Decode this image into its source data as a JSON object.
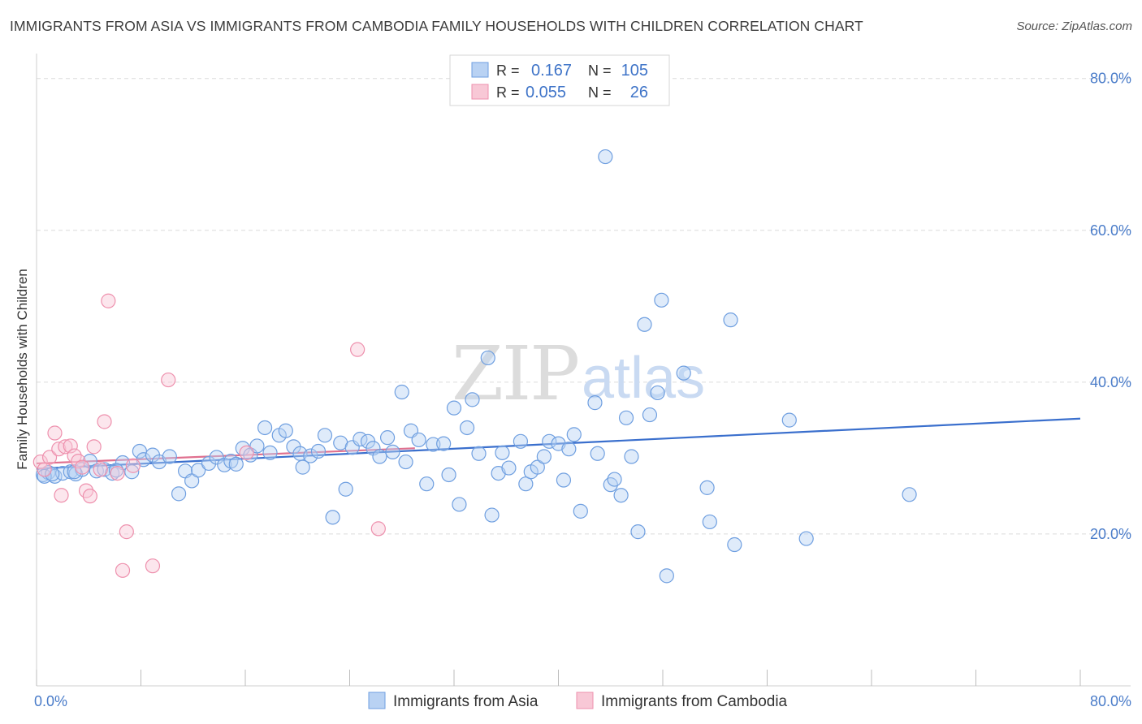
{
  "title": "IMMIGRANTS FROM ASIA VS IMMIGRANTS FROM CAMBODIA FAMILY HOUSEHOLDS WITH CHILDREN CORRELATION CHART",
  "source": "Source: ZipAtlas.com",
  "watermark": {
    "part1": "ZIP",
    "part2": "atlas"
  },
  "colors": {
    "asia": "#6f9fe0",
    "asia_fill": "#b9d2f3",
    "asia_line": "#3a6fcd",
    "cambodia": "#ee90ad",
    "cambodia_fill": "#f8c8d6",
    "cambodia_line": "#e0708f",
    "grid": "#dcdcdc",
    "axis_label": "#4a7cc9"
  },
  "legend_top": {
    "rows": [
      {
        "r_label": "R =",
        "r_value": "0.167",
        "n_label": "N =",
        "n_value": "105",
        "series": "asia"
      },
      {
        "r_label": "R =",
        "r_value": "0.055",
        "n_label": "N =",
        "n_value": "26",
        "series": "cambodia"
      }
    ]
  },
  "chart_data": {
    "type": "scatter",
    "title": "IMMIGRANTS FROM ASIA VS IMMIGRANTS FROM CAMBODIA FAMILY HOUSEHOLDS WITH CHILDREN CORRELATION CHART",
    "xlabel": "",
    "ylabel": "Family Households with Children",
    "xlim": [
      0,
      80
    ],
    "ylim": [
      0,
      82
    ],
    "x_tick_labels": [
      "0.0%",
      "80.0%"
    ],
    "y_ticks": [
      20,
      40,
      60,
      80
    ],
    "y_tick_labels": [
      "20.0%",
      "40.0%",
      "60.0%",
      "80.0%"
    ],
    "grid": true,
    "legend_position": "bottom-center",
    "series": [
      {
        "name": "Immigrants from Asia",
        "key": "asia",
        "trend": [
          [
            0,
            28.6
          ],
          [
            80,
            35.2
          ]
        ],
        "points": [
          [
            0.5,
            27.8
          ],
          [
            0.9,
            28.1
          ],
          [
            1.4,
            27.6
          ],
          [
            2.0,
            28.0
          ],
          [
            2.6,
            28.2
          ],
          [
            3.0,
            27.9
          ],
          [
            3.5,
            28.5
          ],
          [
            4.1,
            29.6
          ],
          [
            4.6,
            28.3
          ],
          [
            5.2,
            28.5
          ],
          [
            5.8,
            28.0
          ],
          [
            6.6,
            29.4
          ],
          [
            7.3,
            28.2
          ],
          [
            7.9,
            30.9
          ],
          [
            8.2,
            29.8
          ],
          [
            8.9,
            30.4
          ],
          [
            9.4,
            29.5
          ],
          [
            10.2,
            30.2
          ],
          [
            10.9,
            25.3
          ],
          [
            11.4,
            28.3
          ],
          [
            11.9,
            27.0
          ],
          [
            12.4,
            28.4
          ],
          [
            13.2,
            29.3
          ],
          [
            13.8,
            30.1
          ],
          [
            14.4,
            29.1
          ],
          [
            14.9,
            29.6
          ],
          [
            15.3,
            29.2
          ],
          [
            15.8,
            31.3
          ],
          [
            16.4,
            30.4
          ],
          [
            16.9,
            31.6
          ],
          [
            17.5,
            34.0
          ],
          [
            17.9,
            30.7
          ],
          [
            18.6,
            33.0
          ],
          [
            19.1,
            33.6
          ],
          [
            19.7,
            31.5
          ],
          [
            20.2,
            30.6
          ],
          [
            20.4,
            28.8
          ],
          [
            21.0,
            30.3
          ],
          [
            21.6,
            30.9
          ],
          [
            22.1,
            33.0
          ],
          [
            22.7,
            22.2
          ],
          [
            23.3,
            32.0
          ],
          [
            23.7,
            25.9
          ],
          [
            24.2,
            31.4
          ],
          [
            24.8,
            32.5
          ],
          [
            25.4,
            32.2
          ],
          [
            25.8,
            31.3
          ],
          [
            26.3,
            30.2
          ],
          [
            26.9,
            32.7
          ],
          [
            27.3,
            30.8
          ],
          [
            28.0,
            38.7
          ],
          [
            28.3,
            29.5
          ],
          [
            28.7,
            33.6
          ],
          [
            29.3,
            32.4
          ],
          [
            29.9,
            26.6
          ],
          [
            30.4,
            31.8
          ],
          [
            31.2,
            31.9
          ],
          [
            31.6,
            27.8
          ],
          [
            32.0,
            36.6
          ],
          [
            32.4,
            23.9
          ],
          [
            33.0,
            34.0
          ],
          [
            33.4,
            37.7
          ],
          [
            33.9,
            30.6
          ],
          [
            34.6,
            43.2
          ],
          [
            34.9,
            22.5
          ],
          [
            35.4,
            28.0
          ],
          [
            35.7,
            30.7
          ],
          [
            36.2,
            28.7
          ],
          [
            37.1,
            32.2
          ],
          [
            37.5,
            26.6
          ],
          [
            37.9,
            28.2
          ],
          [
            38.4,
            28.8
          ],
          [
            38.9,
            30.2
          ],
          [
            39.3,
            32.2
          ],
          [
            40.0,
            31.9
          ],
          [
            40.4,
            27.1
          ],
          [
            40.8,
            31.2
          ],
          [
            41.2,
            33.1
          ],
          [
            41.7,
            23.0
          ],
          [
            42.8,
            37.3
          ],
          [
            43.0,
            30.6
          ],
          [
            43.6,
            69.7
          ],
          [
            44.0,
            26.5
          ],
          [
            44.3,
            27.2
          ],
          [
            44.8,
            25.1
          ],
          [
            45.2,
            35.3
          ],
          [
            45.6,
            30.2
          ],
          [
            46.1,
            20.3
          ],
          [
            46.6,
            47.6
          ],
          [
            47.0,
            35.7
          ],
          [
            47.6,
            38.6
          ],
          [
            47.9,
            50.8
          ],
          [
            48.3,
            14.5
          ],
          [
            49.6,
            41.2
          ],
          [
            51.4,
            26.1
          ],
          [
            51.6,
            21.6
          ],
          [
            53.2,
            48.2
          ],
          [
            53.5,
            18.6
          ],
          [
            57.7,
            35.0
          ],
          [
            59.0,
            19.4
          ],
          [
            66.9,
            25.2
          ],
          [
            0.6,
            27.6
          ],
          [
            1.2,
            27.9
          ],
          [
            2.9,
            28.2
          ],
          [
            6.1,
            28.4
          ]
        ]
      },
      {
        "name": "Immigrants from Cambodia",
        "key": "cambodia",
        "trend": [
          [
            0,
            29.3
          ],
          [
            29,
            31.3
          ]
        ],
        "points": [
          [
            0.3,
            29.5
          ],
          [
            0.6,
            28.5
          ],
          [
            1.0,
            30.1
          ],
          [
            1.4,
            33.3
          ],
          [
            1.7,
            31.2
          ],
          [
            1.9,
            25.1
          ],
          [
            2.2,
            31.5
          ],
          [
            2.6,
            31.6
          ],
          [
            2.9,
            30.3
          ],
          [
            3.2,
            29.6
          ],
          [
            3.5,
            28.8
          ],
          [
            3.8,
            25.7
          ],
          [
            4.1,
            25.0
          ],
          [
            4.4,
            31.5
          ],
          [
            4.9,
            28.5
          ],
          [
            5.2,
            34.8
          ],
          [
            5.5,
            50.7
          ],
          [
            6.2,
            28.0
          ],
          [
            6.6,
            15.2
          ],
          [
            6.9,
            20.3
          ],
          [
            7.4,
            29.0
          ],
          [
            8.9,
            15.8
          ],
          [
            10.1,
            40.3
          ],
          [
            16.1,
            30.7
          ],
          [
            24.6,
            44.3
          ],
          [
            26.2,
            20.7
          ]
        ]
      }
    ]
  },
  "legend_bottom": [
    {
      "label": "Immigrants from Asia",
      "series": "asia"
    },
    {
      "label": "Immigrants from Cambodia",
      "series": "cambodia"
    }
  ]
}
